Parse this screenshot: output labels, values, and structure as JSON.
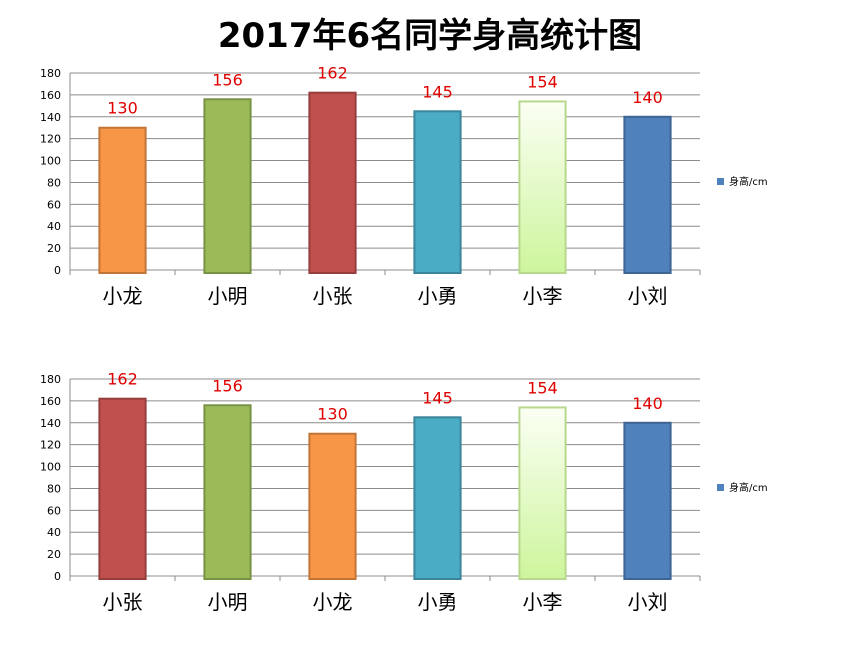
{
  "title": "2017年6名同学身高统计图",
  "chart_data": [
    {
      "type": "bar",
      "categories": [
        "小龙",
        "小明",
        "小张",
        "小勇",
        "小李",
        "小刘"
      ],
      "series": [
        {
          "name": "身高/cm",
          "values": [
            130,
            156,
            162,
            145,
            154,
            140
          ]
        }
      ],
      "colors": [
        "#f79646",
        "#9bbb59",
        "#c0504d",
        "#4bacc6",
        "#e4f9c4",
        "#4f81bd"
      ],
      "ylim": [
        0,
        180
      ],
      "yticks": [
        0,
        20,
        40,
        60,
        80,
        100,
        120,
        140,
        160,
        180
      ],
      "legend": "right",
      "grid": true
    },
    {
      "type": "bar",
      "categories": [
        "小张",
        "小明",
        "小龙",
        "小勇",
        "小李",
        "小刘"
      ],
      "series": [
        {
          "name": "身高/cm",
          "values": [
            162,
            156,
            130,
            145,
            154,
            140
          ]
        }
      ],
      "colors": [
        "#c0504d",
        "#9bbb59",
        "#f79646",
        "#4bacc6",
        "#e4f9c4",
        "#4f81bd"
      ],
      "ylim": [
        0,
        180
      ],
      "yticks": [
        0,
        20,
        40,
        60,
        80,
        100,
        120,
        140,
        160,
        180
      ],
      "legend": "right",
      "grid": true
    }
  ]
}
